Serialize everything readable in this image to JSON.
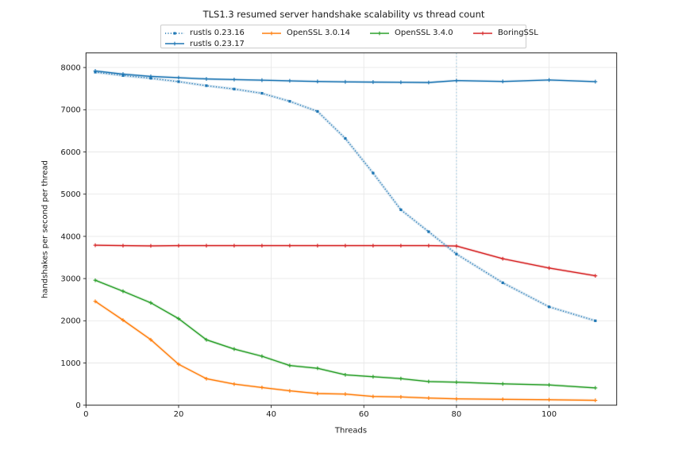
{
  "chart_data": {
    "type": "line",
    "title": "TLS1.3 resumed server handshake scalability vs thread count",
    "xlabel": "Threads",
    "ylabel": "handshakes per second per thread",
    "x": [
      2,
      8,
      14,
      20,
      26,
      32,
      38,
      44,
      50,
      56,
      62,
      68,
      74,
      80,
      90,
      100,
      110
    ],
    "series": [
      {
        "name": "OpenSSL 3.0.14",
        "color": "#ff7f0e",
        "style": "solid",
        "marker": "plus",
        "values": [
          2460,
          2015,
          1550,
          970,
          627,
          500,
          420,
          340,
          276,
          263,
          206,
          195,
          170,
          150,
          140,
          130,
          115
        ]
      },
      {
        "name": "OpenSSL 3.4.0",
        "color": "#2ca02c",
        "style": "solid",
        "marker": "plus",
        "values": [
          2960,
          2700,
          2425,
          2050,
          1550,
          1330,
          1160,
          940,
          875,
          720,
          675,
          630,
          560,
          545,
          505,
          480,
          410
        ]
      },
      {
        "name": "BoringSSL",
        "color": "#d62728",
        "style": "solid",
        "marker": "plus",
        "values": [
          3790,
          3780,
          3775,
          3780,
          3780,
          3780,
          3780,
          3780,
          3780,
          3780,
          3780,
          3780,
          3780,
          3770,
          3470,
          3250,
          3065
        ]
      },
      {
        "name": "rustls 0.23.16",
        "color": "#1f77b4",
        "style": "dotted",
        "marker": "square",
        "values": [
          7890,
          7810,
          7745,
          7665,
          7570,
          7490,
          7390,
          7200,
          6960,
          6320,
          5500,
          4630,
          4110,
          3580,
          2900,
          2330,
          2000
        ]
      },
      {
        "name": "rustls 0.23.17",
        "color": "#1f77b4",
        "style": "solid",
        "marker": "plus",
        "values": [
          7920,
          7845,
          7790,
          7760,
          7730,
          7715,
          7700,
          7685,
          7670,
          7660,
          7655,
          7650,
          7645,
          7690,
          7670,
          7705,
          7665
        ]
      }
    ],
    "xticks": [
      0,
      20,
      40,
      60,
      80,
      100
    ],
    "yticks": [
      0,
      1000,
      2000,
      3000,
      4000,
      5000,
      6000,
      7000,
      8000
    ],
    "xlim": [
      0,
      114.6
    ],
    "ylim": [
      0,
      8346
    ],
    "grid": true,
    "annotations": [
      {
        "type": "vline",
        "x": 80,
        "color": "#a9cde2",
        "style": "dotted"
      }
    ],
    "legend_position": "top-center",
    "legend_order": [
      "rustls 0.23.16",
      "OpenSSL 3.0.14",
      "OpenSSL 3.4.0",
      "BoringSSL",
      "rustls 0.23.17"
    ]
  },
  "colors": {
    "grid": "#e8e8e8",
    "spine": "#262626",
    "tick": "#262626",
    "text": "#1a1a1a",
    "background": "#ffffff",
    "legend_border": "#cccccc"
  }
}
